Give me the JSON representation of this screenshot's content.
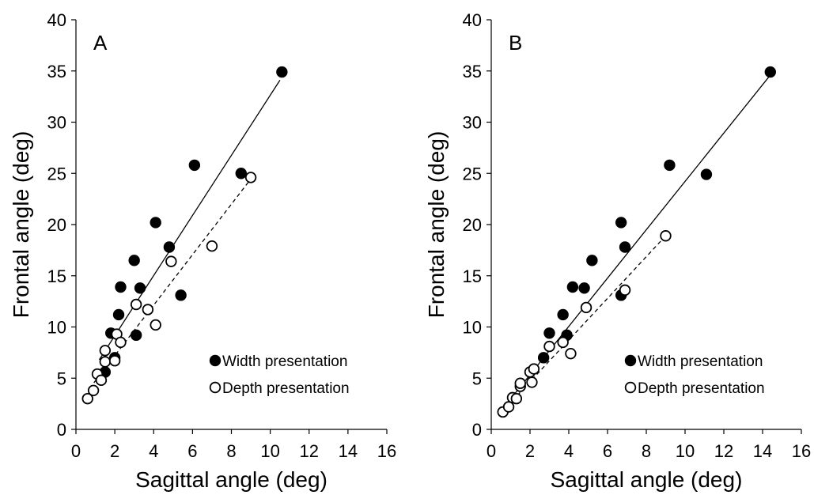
{
  "chart_data": [
    {
      "type": "scatter",
      "panel_label": "A",
      "xlabel": "Sagittal angle (deg)",
      "ylabel": "Frontal angle (deg)",
      "xlim": [
        0,
        16
      ],
      "ylim": [
        0,
        40
      ],
      "xticks": [
        0,
        2,
        4,
        6,
        8,
        10,
        12,
        14,
        16
      ],
      "yticks": [
        0,
        5,
        10,
        15,
        20,
        25,
        30,
        35,
        40
      ],
      "legend_position": "bottom-right",
      "series": [
        {
          "name": "Width presentation",
          "marker": "filled-circle",
          "color": "#000000",
          "points": [
            [
              1.5,
              5.6
            ],
            [
              1.8,
              9.4
            ],
            [
              2.0,
              7.0
            ],
            [
              2.2,
              11.2
            ],
            [
              2.3,
              13.9
            ],
            [
              3.0,
              16.5
            ],
            [
              3.1,
              9.2
            ],
            [
              3.3,
              13.8
            ],
            [
              4.1,
              20.2
            ],
            [
              4.8,
              17.8
            ],
            [
              5.4,
              13.1
            ],
            [
              6.1,
              25.8
            ],
            [
              8.5,
              25.0
            ],
            [
              10.6,
              34.9
            ]
          ],
          "fit": [
            [
              1.2,
              6.8
            ],
            [
              10.5,
              34.1
            ]
          ],
          "fit_style": "solid"
        },
        {
          "name": "Depth presentation",
          "marker": "open-circle",
          "color": "#000000",
          "points": [
            [
              0.6,
              3.0
            ],
            [
              0.9,
              3.8
            ],
            [
              1.1,
              5.4
            ],
            [
              1.3,
              4.8
            ],
            [
              1.5,
              6.6
            ],
            [
              1.5,
              7.7
            ],
            [
              2.0,
              6.7
            ],
            [
              2.1,
              9.3
            ],
            [
              2.3,
              8.5
            ],
            [
              3.1,
              12.2
            ],
            [
              3.7,
              11.7
            ],
            [
              4.1,
              10.2
            ],
            [
              4.9,
              16.4
            ],
            [
              7.0,
              17.9
            ],
            [
              9.0,
              24.6
            ]
          ],
          "fit": [
            [
              0.7,
              4.0
            ],
            [
              9.1,
              24.7
            ]
          ],
          "fit_style": "dashed"
        }
      ]
    },
    {
      "type": "scatter",
      "panel_label": "B",
      "xlabel": "Sagittal angle (deg)",
      "ylabel": "Frontal angle (deg)",
      "xlim": [
        0,
        16
      ],
      "ylim": [
        0,
        40
      ],
      "xticks": [
        0,
        2,
        4,
        6,
        8,
        10,
        12,
        14,
        16
      ],
      "yticks": [
        0,
        5,
        10,
        15,
        20,
        25,
        30,
        35,
        40
      ],
      "legend_position": "bottom-right",
      "series": [
        {
          "name": "Width presentation",
          "marker": "filled-circle",
          "color": "#000000",
          "points": [
            [
              2.7,
              7.0
            ],
            [
              3.0,
              9.4
            ],
            [
              3.7,
              11.2
            ],
            [
              3.9,
              9.2
            ],
            [
              4.2,
              13.9
            ],
            [
              4.8,
              13.8
            ],
            [
              5.2,
              16.5
            ],
            [
              6.7,
              13.1
            ],
            [
              6.7,
              20.2
            ],
            [
              6.9,
              17.8
            ],
            [
              9.2,
              25.8
            ],
            [
              11.1,
              24.9
            ],
            [
              14.4,
              34.9
            ]
          ],
          "fit": [
            [
              0.8,
              2.5
            ],
            [
              14.4,
              34.6
            ]
          ],
          "fit_style": "solid"
        },
        {
          "name": "Depth presentation",
          "marker": "open-circle",
          "color": "#000000",
          "points": [
            [
              0.6,
              1.7
            ],
            [
              0.9,
              2.2
            ],
            [
              1.1,
              3.1
            ],
            [
              1.3,
              3.0
            ],
            [
              1.5,
              4.2
            ],
            [
              1.5,
              4.5
            ],
            [
              2.0,
              5.6
            ],
            [
              2.1,
              4.6
            ],
            [
              2.2,
              5.9
            ],
            [
              3.0,
              8.1
            ],
            [
              3.7,
              8.5
            ],
            [
              4.1,
              7.4
            ],
            [
              4.9,
              11.9
            ],
            [
              6.9,
              13.6
            ],
            [
              9.0,
              18.9
            ]
          ],
          "fit": [
            [
              0.6,
              1.8
            ],
            [
              9.0,
              18.9
            ]
          ],
          "fit_style": "dashed"
        }
      ]
    }
  ]
}
